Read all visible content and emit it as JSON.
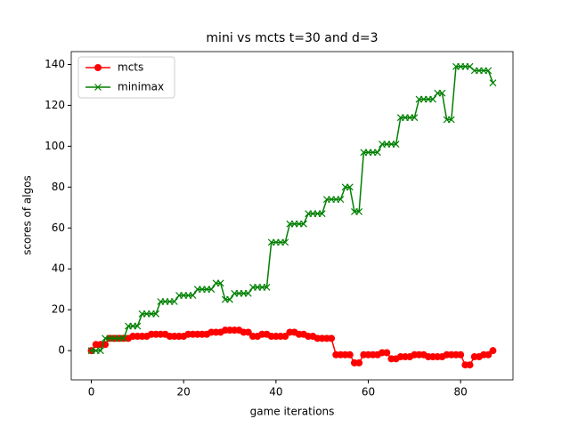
{
  "chart_data": {
    "type": "line",
    "title": "mini vs mcts t=30 and d=3",
    "x_label": "game iterations",
    "y_label": "scores of algos",
    "x": [
      0,
      1,
      2,
      3,
      4,
      5,
      6,
      7,
      8,
      9,
      10,
      11,
      12,
      13,
      14,
      15,
      16,
      17,
      18,
      19,
      20,
      21,
      22,
      23,
      24,
      25,
      26,
      27,
      28,
      29,
      30,
      31,
      32,
      33,
      34,
      35,
      36,
      37,
      38,
      39,
      40,
      41,
      42,
      43,
      44,
      45,
      46,
      47,
      48,
      49,
      50,
      51,
      52,
      53,
      54,
      55,
      56,
      57,
      58,
      59,
      60,
      61,
      62,
      63,
      64,
      65,
      66,
      67,
      68,
      69,
      70,
      71,
      72,
      73,
      74,
      75,
      76,
      77,
      78,
      79,
      80,
      81,
      82,
      83,
      84,
      85,
      86,
      87
    ],
    "series": [
      {
        "name": "mcts",
        "color": "#ff0000",
        "marker": "o",
        "values": [
          0,
          3,
          3,
          3,
          6,
          6,
          6,
          6,
          6,
          7,
          7,
          7,
          7,
          8,
          8,
          8,
          8,
          7,
          7,
          7,
          7,
          8,
          8,
          8,
          8,
          8,
          9,
          9,
          9,
          10,
          10,
          10,
          10,
          9,
          9,
          7,
          7,
          8,
          8,
          7,
          7,
          7,
          7,
          9,
          9,
          8,
          8,
          7,
          7,
          6,
          6,
          6,
          6,
          -2,
          -2,
          -2,
          -2,
          -6,
          -6,
          -2,
          -2,
          -2,
          -2,
          -1,
          -1,
          -4,
          -4,
          -3,
          -3,
          -3,
          -2,
          -2,
          -2,
          -3,
          -3,
          -3,
          -3,
          -2,
          -2,
          -2,
          -2,
          -7,
          -7,
          -3,
          -3,
          -2,
          -2,
          0
        ]
      },
      {
        "name": "minimax",
        "color": "#008000",
        "marker": "x",
        "values": [
          0,
          0,
          0,
          6,
          6,
          6,
          6,
          6,
          12,
          12,
          12,
          18,
          18,
          18,
          18,
          24,
          24,
          24,
          24,
          27,
          27,
          27,
          27,
          30,
          30,
          30,
          30,
          33,
          33,
          25,
          25,
          28,
          28,
          28,
          28,
          31,
          31,
          31,
          31,
          53,
          53,
          53,
          53,
          62,
          62,
          62,
          62,
          67,
          67,
          67,
          67,
          74,
          74,
          74,
          74,
          80,
          80,
          68,
          68,
          97,
          97,
          97,
          97,
          101,
          101,
          101,
          101,
          114,
          114,
          114,
          114,
          123,
          123,
          123,
          123,
          126,
          126,
          113,
          113,
          139,
          139,
          139,
          139,
          137,
          137,
          137,
          137,
          131
        ]
      }
    ],
    "xlim": [
      -4.35,
      91.35
    ],
    "xticks": [
      0,
      20,
      40,
      60,
      80
    ],
    "ylim": [
      -14.3,
      146.3
    ],
    "yticks": [
      0,
      20,
      40,
      60,
      80,
      100,
      120,
      140
    ],
    "legend": "upper left",
    "grid": false
  }
}
